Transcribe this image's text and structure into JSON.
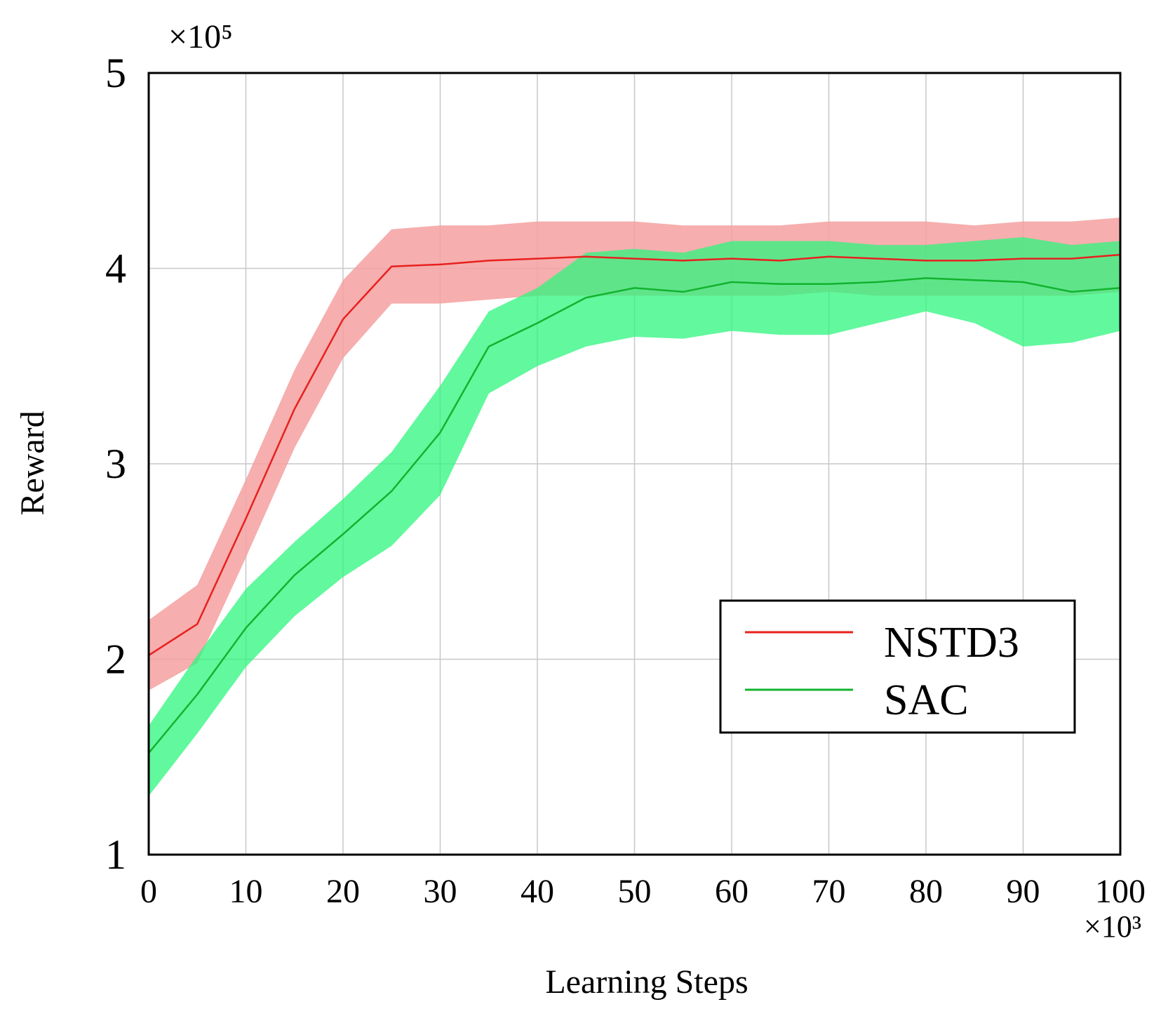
{
  "chart_data": {
    "type": "line",
    "title": "",
    "xlabel": "Learning Steps",
    "ylabel": "Reward",
    "x_multiplier_label": "×10³",
    "y_multiplier_label": "×10⁵",
    "xlim": [
      0,
      100
    ],
    "ylim": [
      1,
      5
    ],
    "x_ticks": [
      0,
      10,
      20,
      30,
      40,
      50,
      60,
      70,
      80,
      90,
      100
    ],
    "y_ticks": [
      1,
      2,
      3,
      4,
      5
    ],
    "grid": true,
    "legend_position": "bottom-right",
    "x": [
      0,
      5,
      10,
      15,
      20,
      25,
      30,
      35,
      40,
      45,
      50,
      55,
      60,
      65,
      70,
      75,
      80,
      85,
      90,
      95,
      100
    ],
    "series": [
      {
        "name": "NSTD3",
        "color": "#e8201e",
        "band_color": "#f4a0a0",
        "values": [
          2.02,
          2.18,
          2.72,
          3.28,
          3.74,
          4.01,
          4.02,
          4.04,
          4.05,
          4.06,
          4.05,
          4.04,
          4.05,
          4.04,
          4.06,
          4.05,
          4.04,
          4.04,
          4.05,
          4.05,
          4.07
        ],
        "lower": [
          1.84,
          1.98,
          2.52,
          3.08,
          3.54,
          3.82,
          3.82,
          3.84,
          3.86,
          3.86,
          3.86,
          3.86,
          3.86,
          3.86,
          3.88,
          3.86,
          3.86,
          3.86,
          3.86,
          3.86,
          3.88
        ],
        "upper": [
          2.2,
          2.38,
          2.92,
          3.48,
          3.94,
          4.2,
          4.22,
          4.22,
          4.24,
          4.24,
          4.24,
          4.22,
          4.22,
          4.22,
          4.24,
          4.24,
          4.24,
          4.22,
          4.24,
          4.24,
          4.26
        ]
      },
      {
        "name": "SAC",
        "color": "#11b32e",
        "band_color": "#2ef57e",
        "values": [
          1.52,
          1.82,
          2.16,
          2.43,
          2.64,
          2.86,
          3.16,
          3.6,
          3.72,
          3.85,
          3.9,
          3.88,
          3.93,
          3.92,
          3.92,
          3.93,
          3.95,
          3.94,
          3.93,
          3.88,
          3.9
        ],
        "lower": [
          1.3,
          1.62,
          1.96,
          2.22,
          2.42,
          2.58,
          2.84,
          3.36,
          3.5,
          3.6,
          3.65,
          3.64,
          3.68,
          3.66,
          3.66,
          3.72,
          3.78,
          3.72,
          3.6,
          3.62,
          3.68
        ],
        "upper": [
          1.66,
          2.02,
          2.36,
          2.6,
          2.82,
          3.06,
          3.4,
          3.78,
          3.9,
          4.08,
          4.1,
          4.08,
          4.14,
          4.14,
          4.14,
          4.12,
          4.12,
          4.14,
          4.16,
          4.12,
          4.14
        ]
      }
    ]
  }
}
